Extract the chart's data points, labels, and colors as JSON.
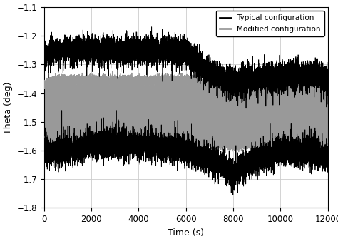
{
  "title": "",
  "xlabel": "Time (s)",
  "ylabel": "Theta (deg)",
  "xlim": [
    0,
    12000
  ],
  "ylim": [
    -1.8,
    -1.1
  ],
  "yticks": [
    -1.8,
    -1.7,
    -1.6,
    -1.5,
    -1.4,
    -1.3,
    -1.2,
    -1.1
  ],
  "xticks": [
    0,
    2000,
    4000,
    6000,
    8000,
    10000,
    12000
  ],
  "typical_color": "#000000",
  "modified_color": "#999999",
  "legend_labels": [
    "Typical configuration",
    "Modified configuration"
  ],
  "seed": 42,
  "n_points": 12000,
  "background_color": "#ffffff",
  "grid_color": "#cccccc",
  "figsize": [
    4.74,
    3.35
  ],
  "dpi": 100
}
